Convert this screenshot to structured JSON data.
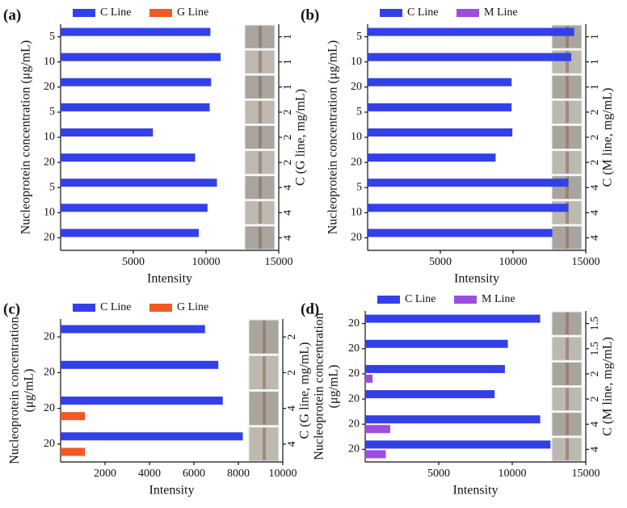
{
  "chart_data": [
    {
      "type": "bar",
      "orientation": "horizontal",
      "panel_label": "(a)",
      "xlabel": "Intensity",
      "ylabel": "Nucleoprotein concentration (μg/mL)",
      "y2label": "C (G line, mg/mL)",
      "categories": [
        "5",
        "10",
        "20",
        "5",
        "10",
        "20",
        "5",
        "10",
        "20"
      ],
      "y2_categories": [
        "1",
        "1",
        "1",
        "2",
        "2",
        "2",
        "4",
        "4",
        "4"
      ],
      "series": [
        {
          "name": "C Line",
          "color": "#3340e8",
          "values": [
            10300,
            11000,
            10350,
            10250,
            6350,
            9250,
            10750,
            10100,
            9500
          ]
        },
        {
          "name": "G Line",
          "color": "#f05a22",
          "values": [
            0,
            0,
            0,
            0,
            0,
            0,
            0,
            0,
            0
          ]
        }
      ],
      "xlim": [
        0,
        15000
      ],
      "xticks": [
        5000,
        10000,
        15000
      ]
    },
    {
      "type": "bar",
      "orientation": "horizontal",
      "panel_label": "(b)",
      "xlabel": "Intensity",
      "ylabel": "Nucleoprotein concentration (μg/mL)",
      "y2label": "C (M line, mg/mL)",
      "categories": [
        "5",
        "10",
        "20",
        "5",
        "10",
        "20",
        "5",
        "10",
        "20"
      ],
      "y2_categories": [
        "1",
        "1",
        "1",
        "2",
        "2",
        "2",
        "4",
        "4",
        "4"
      ],
      "series": [
        {
          "name": "C Line",
          "color": "#3340e8",
          "values": [
            14200,
            14000,
            9900,
            9900,
            9950,
            8800,
            13800,
            13800,
            12700
          ]
        },
        {
          "name": "M Line",
          "color": "#9b4de0",
          "values": [
            0,
            0,
            0,
            0,
            0,
            0,
            0,
            0,
            0
          ]
        }
      ],
      "xlim": [
        0,
        15000
      ],
      "xticks": [
        5000,
        10000,
        15000
      ]
    },
    {
      "type": "bar",
      "orientation": "horizontal",
      "panel_label": "(c)",
      "xlabel": "Intensity",
      "ylabel": [
        "Nucleoprotein concentration",
        "(μg/mL)"
      ],
      "y2label": "C (G line, mg/mL)",
      "categories": [
        "20",
        "20",
        "20",
        "20"
      ],
      "y2_categories": [
        "2",
        "2",
        "4",
        "4"
      ],
      "series": [
        {
          "name": "C Line",
          "color": "#3340e8",
          "values": [
            6500,
            7100,
            7300,
            8200
          ]
        },
        {
          "name": "G Line",
          "color": "#f05a22",
          "values": [
            0,
            0,
            1100,
            1100
          ]
        }
      ],
      "xlim": [
        0,
        10000
      ],
      "xticks": [
        2000,
        4000,
        6000,
        8000,
        10000
      ]
    },
    {
      "type": "bar",
      "orientation": "horizontal",
      "panel_label": "(d)",
      "xlabel": "Intensity",
      "ylabel": [
        "Nucleoprotein concentration",
        "(μg/mL)"
      ],
      "y2label": "C (M line, mg/mL)",
      "categories": [
        "20",
        "20",
        "20",
        "20",
        "20",
        "20"
      ],
      "y2_categories": [
        "1.5",
        "1.5",
        "2",
        "2",
        "4",
        "4"
      ],
      "series": [
        {
          "name": "C Line",
          "color": "#3340e8",
          "values": [
            11900,
            9700,
            9500,
            8800,
            11900,
            12600
          ]
        },
        {
          "name": "M Line",
          "color": "#9b4de0",
          "values": [
            0,
            0,
            500,
            0,
            1700,
            1400
          ]
        }
      ],
      "xlim": [
        0,
        15000
      ],
      "xticks": [
        5000,
        10000,
        15000
      ]
    }
  ]
}
